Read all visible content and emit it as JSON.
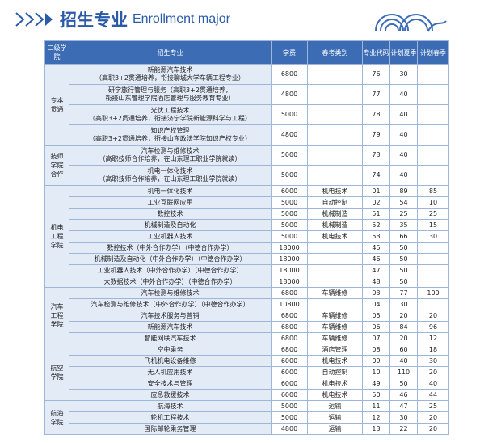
{
  "header": {
    "title": "招生专业",
    "subtitle": "Enrollment major"
  },
  "table": {
    "columns": [
      "二级学院",
      "招生专业",
      "学费",
      "春考类别",
      "专业代码",
      "计划夏季",
      "计划春季"
    ],
    "groups": [
      {
        "label": "专本贯通",
        "rows": [
          [
            [
              "新能源汽车技术",
              "（高职3+2贯通培养，衔接聊城大学车辆工程专业）"
            ],
            6800,
            null,
            76,
            30,
            null
          ],
          [
            [
              "研学旅行管理与服务（高职3+2贯通培养，",
              "衔接山东管理学院酒店管理与服务教育专业）"
            ],
            4800,
            null,
            77,
            40,
            null
          ],
          [
            [
              "光伏工程技术",
              "（高职3+2贯通培养，衔接济宁学院新能源科学与工程）"
            ],
            5000,
            null,
            78,
            40,
            null
          ],
          [
            [
              "知识产权管理",
              "（高职3+2贯通培养，衔接山东政法学院知识产权专业）"
            ],
            4800,
            null,
            79,
            40,
            null
          ]
        ]
      },
      {
        "label": "技师学院合作",
        "rows": [
          [
            [
              "汽车检测与维修技术",
              "（高职技师合作培养，在山东理工职业学院就读）"
            ],
            5000,
            null,
            73,
            40,
            null
          ],
          [
            [
              "机电一体化技术",
              "（高职技师合作培养，在山东理工职业学院就读）"
            ],
            5000,
            null,
            74,
            40,
            null
          ]
        ]
      },
      {
        "label": "机电工程学院",
        "rows": [
          [
            [
              "机电一体化技术"
            ],
            6000,
            "机电技术",
            "01",
            89,
            85
          ],
          [
            [
              "工业互联网应用"
            ],
            5000,
            "自动控制",
            "02",
            54,
            10
          ],
          [
            [
              "数控技术"
            ],
            5000,
            "机械制造",
            51,
            25,
            25
          ],
          [
            [
              "机械制造及自动化"
            ],
            5000,
            "机械制造",
            52,
            35,
            15
          ],
          [
            [
              "工业机器人技术"
            ],
            5000,
            "机电技术",
            53,
            66,
            30
          ],
          [
            [
              "数控技术（中外合作办学）（中德合作办学）"
            ],
            18000,
            null,
            45,
            50,
            null
          ],
          [
            [
              "机械制造及自动化（中外合作办学）（中德合作办学）"
            ],
            18000,
            null,
            46,
            50,
            null
          ],
          [
            [
              "工业机器人技术（中外合作办学）（中德合作办学）"
            ],
            18000,
            null,
            47,
            50,
            null
          ],
          [
            [
              "大数据技术（中外合作办学）（中德合作办学）"
            ],
            18000,
            null,
            48,
            50,
            null
          ]
        ]
      },
      {
        "label": "汽车工程学院",
        "rows": [
          [
            [
              "汽车检测与维修技术"
            ],
            6800,
            "车辆维修",
            "03",
            77,
            100
          ],
          [
            [
              "汽车检测与维修技术（中外合作办学）（中德合作办学）"
            ],
            10800,
            null,
            "04",
            30,
            null
          ],
          [
            [
              "汽车技术服务与营销"
            ],
            6800,
            "车辆维修",
            "05",
            20,
            20
          ],
          [
            [
              "新能源汽车技术"
            ],
            6800,
            "车辆维修",
            "06",
            84,
            96
          ],
          [
            [
              "智能网联汽车技术"
            ],
            6800,
            "车辆维修",
            "07",
            20,
            12
          ]
        ]
      },
      {
        "label": "航空学院",
        "rows": [
          [
            [
              "空中乘务"
            ],
            6800,
            "酒店管理",
            "08",
            60,
            18
          ],
          [
            [
              "飞机机电设备维修"
            ],
            6000,
            "机电技术",
            "09",
            40,
            30
          ],
          [
            [
              "无人机应用技术"
            ],
            6000,
            "自动控制",
            10,
            110,
            20
          ],
          [
            [
              "安全技术与管理"
            ],
            6000,
            "机电技术",
            49,
            50,
            40
          ],
          [
            [
              "应急救援技术"
            ],
            6000,
            "机电技术",
            50,
            46,
            44
          ]
        ]
      },
      {
        "label": "航海学院",
        "rows": [
          [
            [
              "航海技术"
            ],
            5000,
            "运输",
            11,
            47,
            25
          ],
          [
            [
              "轮机工程技术"
            ],
            5000,
            "运输",
            12,
            30,
            20
          ],
          [
            [
              "国际邮轮乘务管理"
            ],
            4800,
            "运输",
            13,
            22,
            20
          ]
        ]
      }
    ]
  }
}
